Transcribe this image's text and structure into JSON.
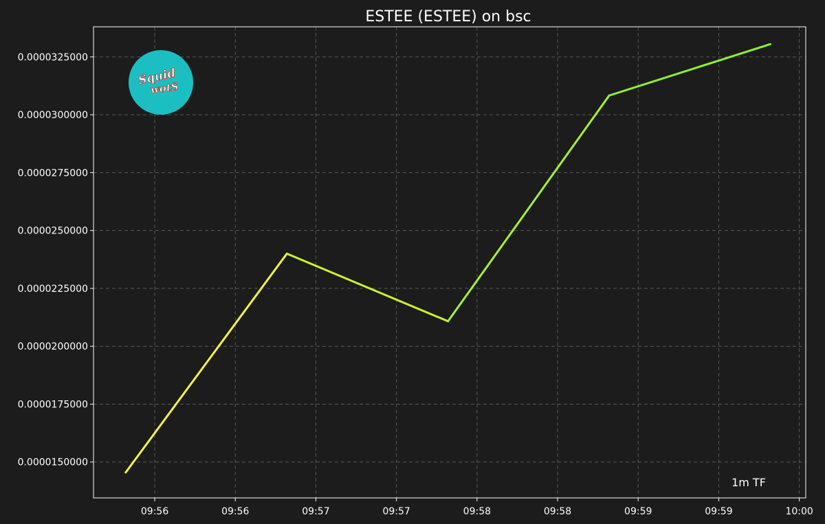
{
  "chart_data": {
    "type": "line",
    "title": "ESTEE (ESTEE) on bsc",
    "xlabel": "",
    "ylabel": "",
    "annotation": "1m TF",
    "x_tick_labels": [
      "09:56",
      "09:56",
      "09:57",
      "09:57",
      "09:58",
      "09:58",
      "09:59",
      "09:59",
      "10:00"
    ],
    "x_tick_minutes": [
      0,
      0.5,
      1,
      1.5,
      2,
      2.5,
      3,
      3.5,
      4
    ],
    "x_range_minutes": [
      -0.38,
      4.04
    ],
    "y_ticks": [
      1.5e-05,
      1.75e-05,
      2e-05,
      2.25e-05,
      2.5e-05,
      2.75e-05,
      3e-05,
      3.25e-05
    ],
    "y_tick_labels": [
      "0.0000150000",
      "0.0000175000",
      "0.0000200000",
      "0.0000225000",
      "0.0000250000",
      "0.0000275000",
      "0.0000300000",
      "0.0000325000"
    ],
    "ylim": [
      1.345e-05,
      3.38e-05
    ],
    "grid": true,
    "series": [
      {
        "x_minutes": [
          -0.18,
          0.82,
          1.82,
          2.82,
          3.82
        ],
        "values": [
          1.455e-05,
          2.4e-05,
          2.108e-05,
          3.083e-05,
          3.305e-05
        ]
      }
    ],
    "line_colors": [
      "#f5f542",
      "#c9f535",
      "#a2f430",
      "#8cf22c"
    ],
    "background": "#1c1c1c",
    "logo": {
      "text_line1": "Squid",
      "text_line2": "wotS",
      "color": "#1bbfc2"
    }
  }
}
